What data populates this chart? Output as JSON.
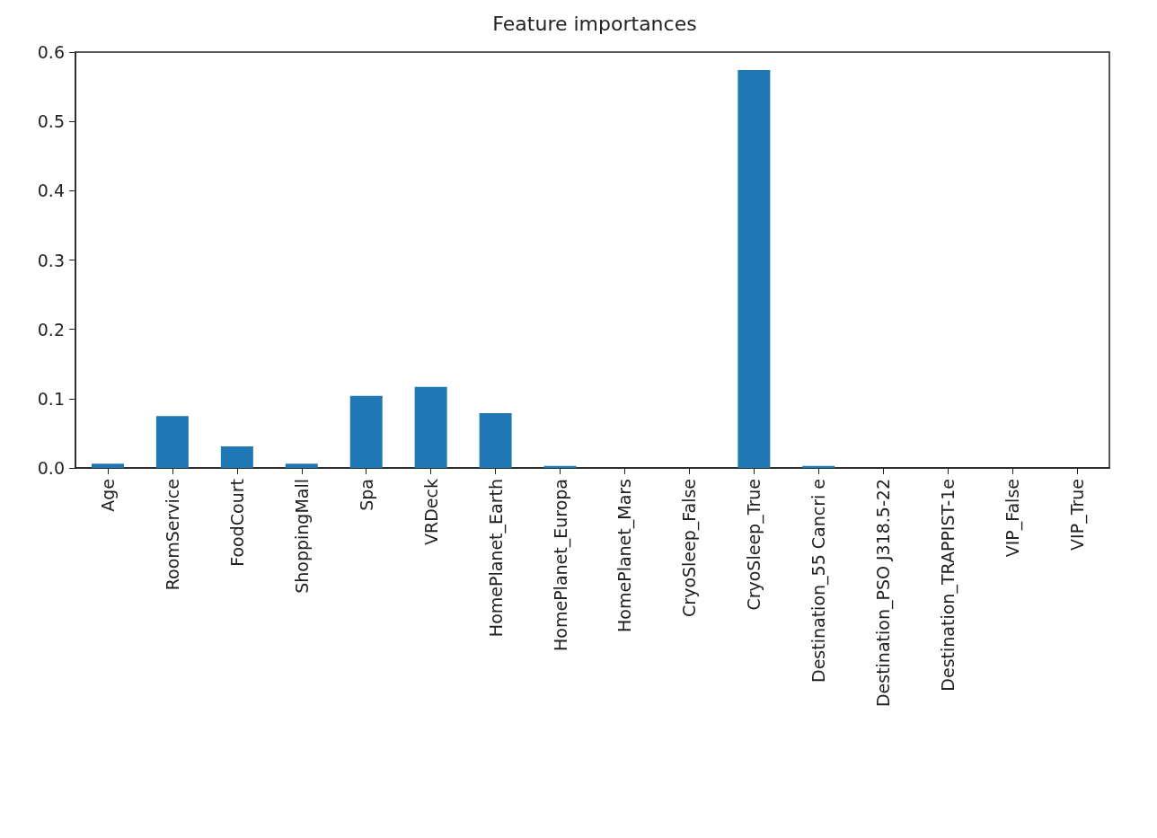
{
  "chart_data": {
    "type": "bar",
    "title": "Feature importances",
    "categories": [
      "Age",
      "RoomService",
      "FoodCourt",
      "ShoppingMall",
      "Spa",
      "VRDeck",
      "HomePlanet_Earth",
      "HomePlanet_Europa",
      "HomePlanet_Mars",
      "CryoSleep_False",
      "CryoSleep_True",
      "Destination_55 Cancri e",
      "Destination_PSO J318.5-22",
      "Destination_TRAPPIST-1e",
      "VIP_False",
      "VIP_True"
    ],
    "values": [
      0.006,
      0.075,
      0.031,
      0.006,
      0.104,
      0.117,
      0.079,
      0.003,
      0,
      0,
      0.574,
      0.003,
      0,
      0,
      0,
      0
    ],
    "color": "#1f77b4",
    "ylim": [
      0,
      0.6
    ],
    "yticks": [
      {
        "value": 0,
        "label": "0.0"
      },
      0.1,
      0.2,
      0.3,
      0.4,
      0.5,
      0.6
    ],
    "grid": false
  }
}
